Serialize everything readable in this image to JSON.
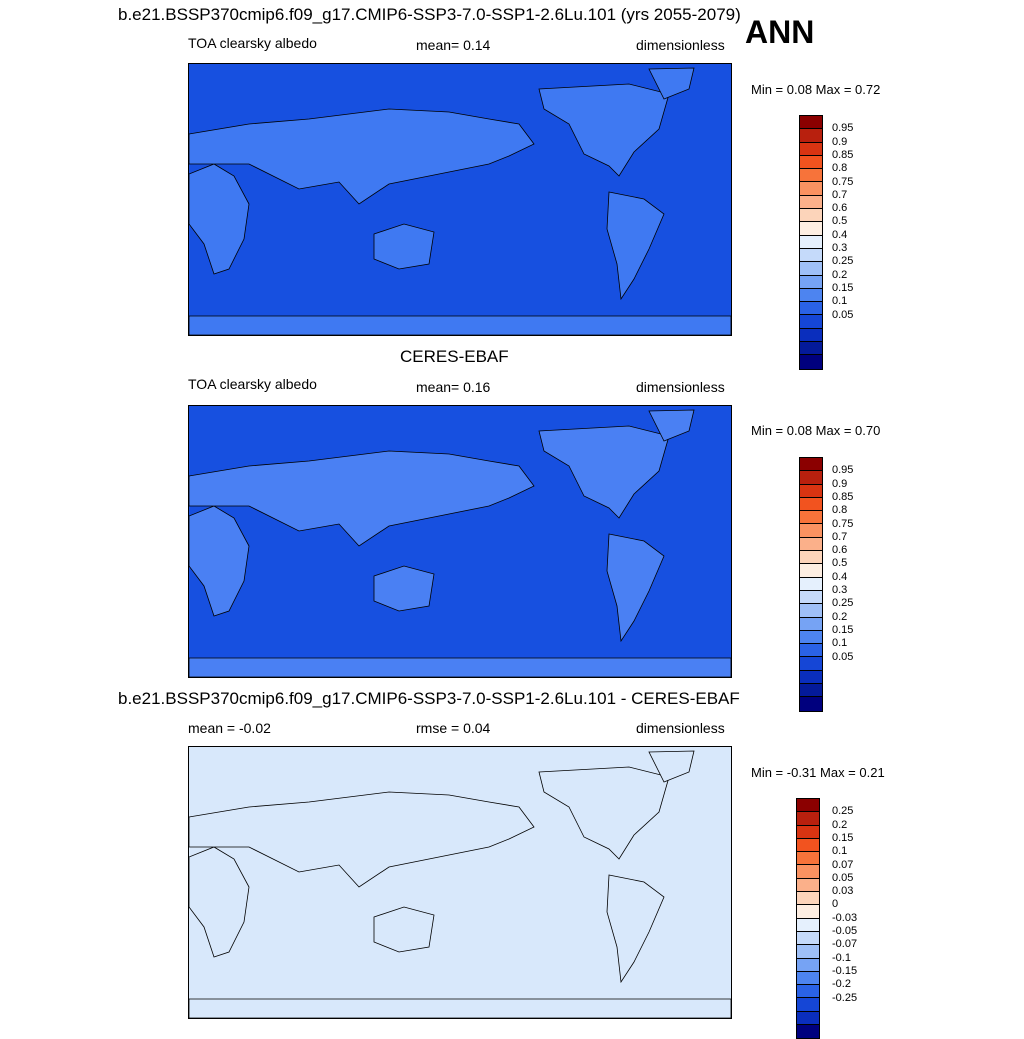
{
  "header": {
    "title": "b.e21.BSSP370cmip6.f09_g17.CMIP6-SSP3-7.0-SSP1-2.6Lu.101 (yrs 2055-2079)",
    "season": "ANN"
  },
  "panels": [
    {
      "title": "",
      "left_label": "TOA clearsky albedo",
      "center_label": "mean=   0.14",
      "right_label": "dimensionless",
      "minmax": "Min =   0.08 Max =   0.72",
      "ocean_color": "#1750e0",
      "land_color": "#3f79f2"
    },
    {
      "title": "CERES-EBAF",
      "left_label": "TOA clearsky albedo",
      "center_label": "mean=   0.16",
      "right_label": "dimensionless",
      "minmax": "Min =   0.08 Max =   0.70",
      "ocean_color": "#1750e0",
      "land_color": "#4a80f3"
    },
    {
      "title": "b.e21.BSSP370cmip6.f09_g17.CMIP6-SSP3-7.0-SSP1-2.6Lu.101 - CERES-EBAF",
      "left_label": "mean =  -0.02",
      "center_label": "rmse =   0.04",
      "right_label": "dimensionless",
      "minmax": "Min =  -0.31 Max =   0.21",
      "ocean_color": "#d8e8fb",
      "land_color": "#d8e8fb"
    }
  ],
  "colorbar_abs": {
    "colors": [
      "#8b0000",
      "#b8200e",
      "#d83412",
      "#f2531f",
      "#f7733a",
      "#fa9261",
      "#fbb08a",
      "#fcd4ba",
      "#fdeee2",
      "#e5f0fd",
      "#c5dafa",
      "#9fc0f7",
      "#76a3f4",
      "#4d84f0",
      "#2a62e6",
      "#1546d6",
      "#0a2ebd",
      "#041a9a",
      "#00007e"
    ],
    "ticks": [
      "0.95",
      "0.9",
      "0.85",
      "0.8",
      "0.75",
      "0.7",
      "0.6",
      "0.5",
      "0.4",
      "0.3",
      "0.25",
      "0.2",
      "0.15",
      "0.1",
      "0.05"
    ]
  },
  "colorbar_diff": {
    "colors": [
      "#8b0000",
      "#b8200e",
      "#d83412",
      "#f2531f",
      "#f7733a",
      "#fa9261",
      "#fbb08a",
      "#fcd4ba",
      "#fdeee2",
      "#e5f0fd",
      "#c5dafa",
      "#9fc0f7",
      "#76a3f4",
      "#4d84f0",
      "#2a62e6",
      "#1546d6",
      "#0a2ebd",
      "#00007e"
    ],
    "ticks": [
      "0.25",
      "0.2",
      "0.15",
      "0.1",
      "0.07",
      "0.05",
      "0.03",
      "0",
      "-0.03",
      "-0.05",
      "-0.07",
      "-0.1",
      "-0.15",
      "-0.2",
      "-0.25"
    ]
  }
}
